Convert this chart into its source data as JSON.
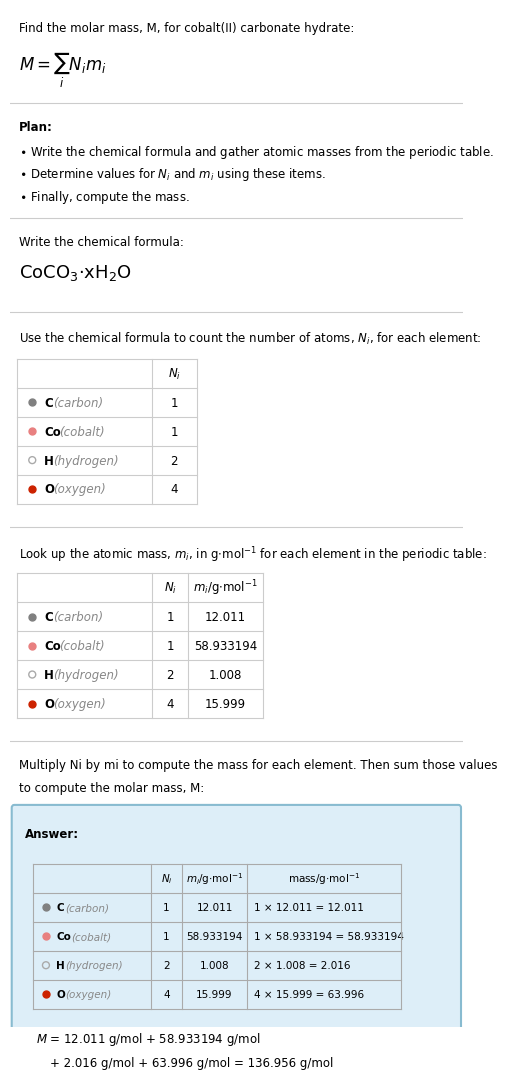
{
  "title_line": "Find the molar mass, M, for cobalt(II) carbonate hydrate:",
  "plan_header": "Plan:",
  "plan_bullets": [
    "• Write the chemical formula and gather atomic masses from the periodic table.",
    "• Determine values for Ni and mi using these items.",
    "• Finally, compute the mass."
  ],
  "chem_formula_header": "Write the chemical formula:",
  "table1_header": "Use the chemical formula to count the number of atoms, Ni, for each element:",
  "table1_rows": [
    {
      "symbol": "C",
      "name": "carbon",
      "dot_color": "#808080",
      "dot_filled": true,
      "N_i": "1"
    },
    {
      "symbol": "Co",
      "name": "cobalt",
      "dot_color": "#e88080",
      "dot_filled": true,
      "N_i": "1"
    },
    {
      "symbol": "H",
      "name": "hydrogen",
      "dot_color": "#aaaaaa",
      "dot_filled": false,
      "N_i": "2"
    },
    {
      "symbol": "O",
      "name": "oxygen",
      "dot_color": "#cc2200",
      "dot_filled": true,
      "N_i": "4"
    }
  ],
  "table2_rows": [
    {
      "symbol": "C",
      "name": "carbon",
      "dot_color": "#808080",
      "dot_filled": true,
      "N_i": "1",
      "m_i": "12.011"
    },
    {
      "symbol": "Co",
      "name": "cobalt",
      "dot_color": "#e88080",
      "dot_filled": true,
      "N_i": "1",
      "m_i": "58.933194"
    },
    {
      "symbol": "H",
      "name": "hydrogen",
      "dot_color": "#aaaaaa",
      "dot_filled": false,
      "N_i": "2",
      "m_i": "1.008"
    },
    {
      "symbol": "O",
      "name": "oxygen",
      "dot_color": "#cc2200",
      "dot_filled": true,
      "N_i": "4",
      "m_i": "15.999"
    }
  ],
  "multiply_header": "Multiply Ni by mi to compute the mass for each element. Then sum those values",
  "multiply_header2": "to compute the molar mass, M:",
  "answer_label": "Answer:",
  "table3_rows": [
    {
      "symbol": "C",
      "name": "carbon",
      "dot_color": "#808080",
      "dot_filled": true,
      "N_i": "1",
      "m_i": "12.011",
      "mass": "1 × 12.011 = 12.011"
    },
    {
      "symbol": "Co",
      "name": "cobalt",
      "dot_color": "#e88080",
      "dot_filled": true,
      "N_i": "1",
      "m_i": "58.933194",
      "mass": "1 × 58.933194 = 58.933194"
    },
    {
      "symbol": "H",
      "name": "hydrogen",
      "dot_color": "#aaaaaa",
      "dot_filled": false,
      "N_i": "2",
      "m_i": "1.008",
      "mass": "2 × 1.008 = 2.016"
    },
    {
      "symbol": "O",
      "name": "oxygen",
      "dot_color": "#cc2200",
      "dot_filled": true,
      "N_i": "4",
      "m_i": "15.999",
      "mass": "4 × 15.999 = 63.996"
    }
  ],
  "final_eq_line1": "M = 12.011 g/mol + 58.933194 g/mol",
  "final_eq_line2": "+ 2.016 g/mol + 63.996 g/mol = 136.956 g/mol",
  "bg_color": "#ffffff",
  "answer_bg_color": "#ddeef8",
  "answer_border_color": "#88bbd0",
  "separator_color": "#cccccc"
}
